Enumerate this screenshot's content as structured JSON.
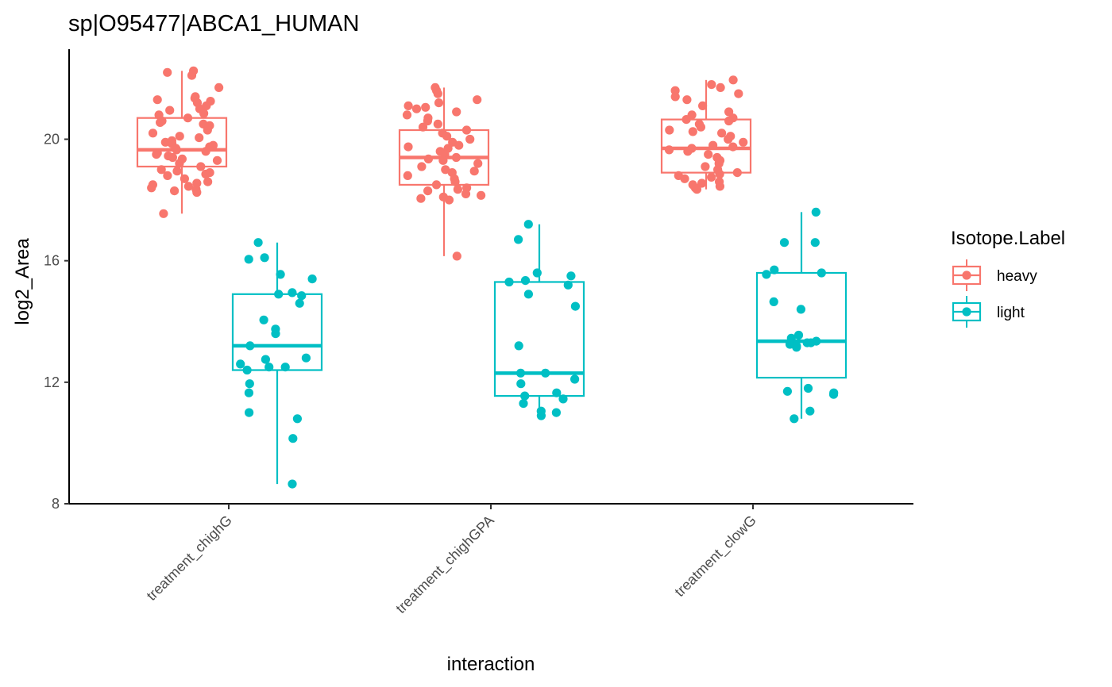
{
  "chart_data": {
    "type": "box",
    "title": "sp|O95477|ABCA1_HUMAN",
    "xlabel": "interaction",
    "ylabel": "log2_Area",
    "ylim": [
      8,
      22.6
    ],
    "y_ticks": [
      8,
      12,
      16,
      20
    ],
    "categories": [
      "treatment_chighG",
      "treatment_chighGPA",
      "treatment_clowG"
    ],
    "legend": {
      "title": "Isotope.Label",
      "position": "right"
    },
    "grid": false,
    "series": [
      {
        "name": "heavy",
        "color": "#F8766D",
        "boxes": [
          {
            "category": "treatment_chighG",
            "whisker_low": 17.55,
            "q1": 19.1,
            "median": 19.65,
            "q3": 20.7,
            "whisker_high": 22.25
          },
          {
            "category": "treatment_chighGPA",
            "whisker_low": 16.15,
            "q1": 18.5,
            "median": 19.4,
            "q3": 20.3,
            "whisker_high": 21.7
          },
          {
            "category": "treatment_clowG",
            "whisker_low": 18.35,
            "q1": 18.9,
            "median": 19.7,
            "q3": 20.65,
            "whisker_high": 21.95
          }
        ],
        "points": [
          [
            22.25,
            22.2,
            22.1,
            21.7,
            21.4,
            21.35,
            21.3,
            21.25,
            21.2,
            21.1,
            21.0,
            20.95,
            20.85,
            20.8,
            20.7,
            20.6,
            20.55,
            20.5,
            20.45,
            20.3,
            20.2,
            20.1,
            20.05,
            19.95,
            19.9,
            19.85,
            19.8,
            19.75,
            19.7,
            19.65,
            19.6,
            19.55,
            19.5,
            19.45,
            19.4,
            19.35,
            19.3,
            19.2,
            19.1,
            19.0,
            18.95,
            18.9,
            18.85,
            18.8,
            18.7,
            18.6,
            18.55,
            18.5,
            18.45,
            18.4,
            18.35,
            18.3,
            18.25,
            17.55
          ],
          [
            21.7,
            21.6,
            21.5,
            21.3,
            21.2,
            21.1,
            21.05,
            21.0,
            20.9,
            20.8,
            20.7,
            20.6,
            20.5,
            20.4,
            20.3,
            20.2,
            20.1,
            20.0,
            19.9,
            19.8,
            19.75,
            19.7,
            19.6,
            19.5,
            19.4,
            19.35,
            19.3,
            19.2,
            19.1,
            19.0,
            18.95,
            18.9,
            18.8,
            18.7,
            18.6,
            18.5,
            18.4,
            18.35,
            18.3,
            18.2,
            18.15,
            18.1,
            18.05,
            18.0,
            16.15
          ],
          [
            21.95,
            21.8,
            21.7,
            21.6,
            21.5,
            21.4,
            21.3,
            21.1,
            20.9,
            20.8,
            20.7,
            20.65,
            20.6,
            20.5,
            20.4,
            20.3,
            20.25,
            20.2,
            20.1,
            20.0,
            19.9,
            19.8,
            19.75,
            19.7,
            19.65,
            19.6,
            19.5,
            19.4,
            19.3,
            19.2,
            19.1,
            19.0,
            18.9,
            18.85,
            18.8,
            18.75,
            18.7,
            18.6,
            18.55,
            18.5,
            18.45,
            18.4,
            18.35
          ]
        ]
      },
      {
        "name": "light",
        "color": "#00BFC4",
        "boxes": [
          {
            "category": "treatment_chighG",
            "whisker_low": 8.65,
            "q1": 12.4,
            "median": 13.2,
            "q3": 14.9,
            "whisker_high": 16.6
          },
          {
            "category": "treatment_chighGPA",
            "whisker_low": 10.9,
            "q1": 11.55,
            "median": 12.3,
            "q3": 15.3,
            "whisker_high": 17.2
          },
          {
            "category": "treatment_clowG",
            "whisker_low": 10.8,
            "q1": 12.15,
            "median": 13.35,
            "q3": 15.6,
            "whisker_high": 17.6
          }
        ],
        "points": [
          [
            16.6,
            16.1,
            16.05,
            15.55,
            15.4,
            14.95,
            14.9,
            14.85,
            14.6,
            14.05,
            13.75,
            13.6,
            13.2,
            12.8,
            12.75,
            12.6,
            12.5,
            12.5,
            12.4,
            11.95,
            11.65,
            11.0,
            10.8,
            10.15,
            8.65
          ],
          [
            17.2,
            16.7,
            15.6,
            15.5,
            15.35,
            15.3,
            15.2,
            14.9,
            14.5,
            13.2,
            12.3,
            12.3,
            12.1,
            11.95,
            11.65,
            11.55,
            11.45,
            11.3,
            11.05,
            11.0,
            10.9
          ],
          [
            17.6,
            16.6,
            16.6,
            15.7,
            15.6,
            15.55,
            14.65,
            14.4,
            13.55,
            13.45,
            13.35,
            13.3,
            13.3,
            13.25,
            13.2,
            13.15,
            11.8,
            11.7,
            11.65,
            11.6,
            11.05,
            10.8
          ]
        ]
      }
    ]
  }
}
